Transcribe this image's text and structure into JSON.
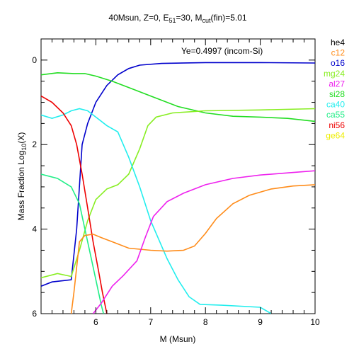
{
  "chart_data": {
    "type": "line",
    "title_parts": {
      "main": "40Msun, Z=0, E",
      "e_sub": "51",
      "e_val": "=30, M",
      "m_sub": "cut",
      "m_val": "(fin)=5.01"
    },
    "annotation": "Ye=0.4997 (incom-Si)",
    "xlabel": "M (Msun)",
    "ylabel_main": "Mass Fraction Log",
    "ylabel_sub": "10",
    "ylabel_end": "(X)",
    "xlim": [
      5.0,
      10.0
    ],
    "ylim": [
      -6.0,
      0.5
    ],
    "x_ticks": [
      "6",
      "7",
      "8",
      "9",
      "10"
    ],
    "y_ticks": [
      "0",
      "2",
      "4",
      "6"
    ],
    "legend": [
      {
        "name": "he4",
        "color": "#000000"
      },
      {
        "name": "c12",
        "color": "#ff8c1a"
      },
      {
        "name": "o16",
        "color": "#0000cc"
      },
      {
        "name": "mg24",
        "color": "#88ee22"
      },
      {
        "name": "al27",
        "color": "#ee22ee"
      },
      {
        "name": "si28",
        "color": "#22dd22"
      },
      {
        "name": "ca40",
        "color": "#22eeee"
      },
      {
        "name": "ca55",
        "color": "#22ee88"
      },
      {
        "name": "ni56",
        "color": "#ee0000"
      },
      {
        "name": "ge64",
        "color": "#eeee00"
      }
    ],
    "series": [
      {
        "name": "o16",
        "color": "#0000cc",
        "points": [
          [
            5.0,
            -5.35
          ],
          [
            5.2,
            -5.25
          ],
          [
            5.55,
            -5.2
          ],
          [
            5.65,
            -4.0
          ],
          [
            5.75,
            -2.0
          ],
          [
            5.85,
            -1.5
          ],
          [
            6.0,
            -1.0
          ],
          [
            6.2,
            -0.6
          ],
          [
            6.4,
            -0.35
          ],
          [
            6.6,
            -0.2
          ],
          [
            6.8,
            -0.12
          ],
          [
            7.2,
            -0.08
          ],
          [
            8.0,
            -0.06
          ],
          [
            9.0,
            -0.06
          ],
          [
            10.0,
            -0.07
          ]
        ]
      },
      {
        "name": "si28",
        "color": "#22dd22",
        "points": [
          [
            5.0,
            -0.35
          ],
          [
            5.3,
            -0.3
          ],
          [
            5.6,
            -0.32
          ],
          [
            5.8,
            -0.32
          ],
          [
            6.0,
            -0.38
          ],
          [
            6.3,
            -0.5
          ],
          [
            6.6,
            -0.65
          ],
          [
            7.0,
            -0.85
          ],
          [
            7.5,
            -1.1
          ],
          [
            8.0,
            -1.25
          ],
          [
            8.5,
            -1.33
          ],
          [
            9.0,
            -1.35
          ],
          [
            9.5,
            -1.38
          ],
          [
            10.0,
            -1.45
          ]
        ]
      },
      {
        "name": "mg24",
        "color": "#88ee22",
        "points": [
          [
            5.0,
            -5.15
          ],
          [
            5.3,
            -5.05
          ],
          [
            5.55,
            -5.12
          ],
          [
            5.7,
            -4.5
          ],
          [
            5.85,
            -3.8
          ],
          [
            6.0,
            -3.3
          ],
          [
            6.2,
            -3.05
          ],
          [
            6.4,
            -2.95
          ],
          [
            6.6,
            -2.7
          ],
          [
            6.8,
            -2.1
          ],
          [
            6.95,
            -1.55
          ],
          [
            7.1,
            -1.35
          ],
          [
            7.4,
            -1.25
          ],
          [
            8.0,
            -1.2
          ],
          [
            9.0,
            -1.18
          ],
          [
            10.0,
            -1.15
          ]
        ]
      },
      {
        "name": "ca55",
        "color": "#22ee88",
        "points": [
          [
            5.0,
            -2.7
          ],
          [
            5.3,
            -2.8
          ],
          [
            5.55,
            -3.0
          ],
          [
            5.7,
            -3.4
          ],
          [
            5.8,
            -4.0
          ],
          [
            5.9,
            -4.6
          ],
          [
            6.0,
            -5.2
          ],
          [
            6.1,
            -5.8
          ],
          [
            6.14,
            -6.0
          ]
        ]
      },
      {
        "name": "ca40",
        "color": "#22eeee",
        "points": [
          [
            5.0,
            -1.3
          ],
          [
            5.2,
            -1.38
          ],
          [
            5.4,
            -1.3
          ],
          [
            5.55,
            -1.2
          ],
          [
            5.7,
            -1.15
          ],
          [
            5.85,
            -1.2
          ],
          [
            6.0,
            -1.35
          ],
          [
            6.2,
            -1.55
          ],
          [
            6.4,
            -1.7
          ],
          [
            6.6,
            -2.3
          ],
          [
            6.8,
            -3.0
          ],
          [
            7.0,
            -3.8
          ],
          [
            7.3,
            -4.7
          ],
          [
            7.5,
            -5.2
          ],
          [
            7.7,
            -5.6
          ],
          [
            7.9,
            -5.78
          ],
          [
            8.3,
            -5.8
          ],
          [
            9.0,
            -5.85
          ],
          [
            9.2,
            -6.0
          ]
        ]
      },
      {
        "name": "ni56",
        "color": "#ee0000",
        "points": [
          [
            5.0,
            -0.85
          ],
          [
            5.2,
            -1.0
          ],
          [
            5.4,
            -1.25
          ],
          [
            5.55,
            -1.55
          ],
          [
            5.65,
            -2.0
          ],
          [
            5.75,
            -2.7
          ],
          [
            5.85,
            -3.5
          ],
          [
            5.95,
            -4.3
          ],
          [
            6.05,
            -5.0
          ],
          [
            6.12,
            -5.5
          ],
          [
            6.2,
            -6.0
          ]
        ]
      },
      {
        "name": "c12",
        "color": "#ff8c1a",
        "points": [
          [
            5.55,
            -6.0
          ],
          [
            5.6,
            -5.5
          ],
          [
            5.7,
            -4.3
          ],
          [
            5.8,
            -4.15
          ],
          [
            5.95,
            -4.12
          ],
          [
            6.1,
            -4.2
          ],
          [
            6.3,
            -4.3
          ],
          [
            6.6,
            -4.45
          ],
          [
            7.0,
            -4.5
          ],
          [
            7.3,
            -4.52
          ],
          [
            7.6,
            -4.5
          ],
          [
            7.8,
            -4.4
          ],
          [
            8.0,
            -4.1
          ],
          [
            8.2,
            -3.75
          ],
          [
            8.5,
            -3.4
          ],
          [
            8.8,
            -3.2
          ],
          [
            9.2,
            -3.05
          ],
          [
            9.6,
            -2.98
          ],
          [
            10.0,
            -2.95
          ]
        ]
      },
      {
        "name": "al27",
        "color": "#ee22ee",
        "points": [
          [
            5.95,
            -6.0
          ],
          [
            6.1,
            -5.75
          ],
          [
            6.3,
            -5.35
          ],
          [
            6.5,
            -5.1
          ],
          [
            6.75,
            -4.75
          ],
          [
            6.9,
            -4.2
          ],
          [
            7.05,
            -3.7
          ],
          [
            7.3,
            -3.35
          ],
          [
            7.6,
            -3.15
          ],
          [
            8.0,
            -2.95
          ],
          [
            8.5,
            -2.8
          ],
          [
            9.0,
            -2.72
          ],
          [
            9.5,
            -2.67
          ],
          [
            10.0,
            -2.62
          ]
        ]
      }
    ]
  }
}
